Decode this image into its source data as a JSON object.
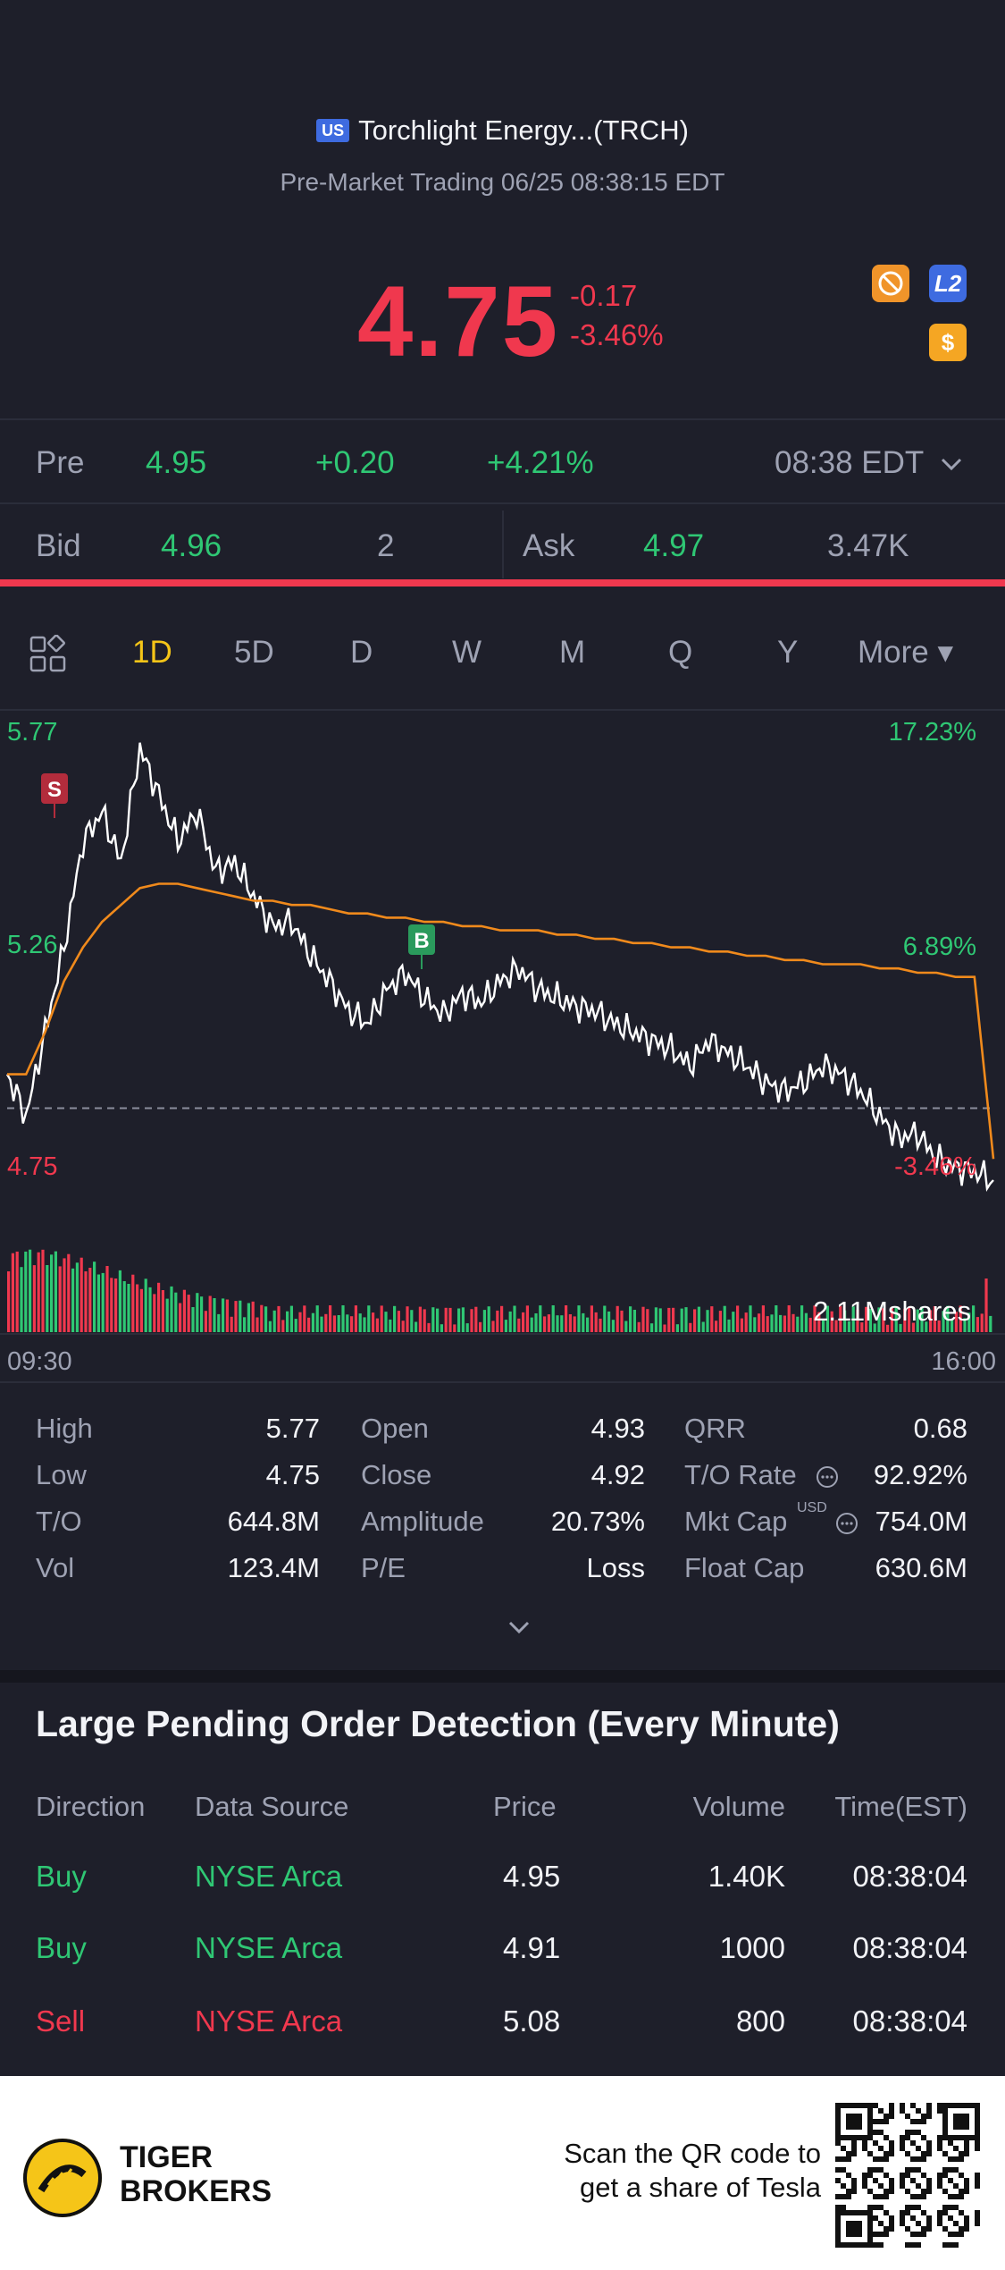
{
  "header": {
    "market_badge": "US",
    "title": "Torchlight Energy...(TRCH)",
    "session": "Pre-Market Trading 06/25 08:38:15 EDT",
    "price": "4.75",
    "change": "-0.17",
    "change_pct": "-3.46%"
  },
  "badges": {
    "l2": "L2",
    "dollar": "$"
  },
  "pre": {
    "label": "Pre",
    "price": "4.95",
    "change": "+0.20",
    "change_pct": "+4.21%",
    "time": "08:38 EDT"
  },
  "bid": {
    "label": "Bid",
    "price": "4.96",
    "size": "2"
  },
  "ask": {
    "label": "Ask",
    "price": "4.97",
    "size": "3.47K"
  },
  "tabs": [
    "1D",
    "5D",
    "D",
    "W",
    "M",
    "Q",
    "Y",
    "More ▾"
  ],
  "active_tab": "1D",
  "chart": {
    "y_top": "5.77",
    "y_mid": "5.26",
    "y_bottom": "4.75",
    "pct_top": "17.23%",
    "pct_mid": "6.89%",
    "pct_bottom": "-3.46%",
    "volume_label": "2.11Mshares",
    "x_start": "09:30",
    "x_end": "16:00",
    "sell_marker": "S",
    "buy_marker": "B"
  },
  "chart_data": {
    "type": "line",
    "x_range": [
      "09:30",
      "16:00"
    ],
    "y_range": [
      4.75,
      5.77
    ],
    "reference_close": 4.92,
    "series": [
      {
        "values": [
          5.0,
          4.9,
          5.1,
          5.3,
          5.55,
          5.62,
          5.5,
          5.77,
          5.66,
          5.55,
          5.62,
          5.48,
          5.5,
          5.42,
          5.35,
          5.36,
          5.28,
          5.22,
          5.15,
          5.12,
          5.2,
          5.24,
          5.18,
          5.14,
          5.19,
          5.17,
          5.22,
          5.25,
          5.2,
          5.18,
          5.16,
          5.15,
          5.12,
          5.1,
          5.08,
          5.06,
          5.02,
          5.08,
          5.05,
          5.02,
          4.98,
          4.96,
          4.98,
          5.02,
          5.0,
          4.96,
          4.9,
          4.85,
          4.86,
          4.8,
          4.78,
          4.77,
          4.75
        ]
      },
      {
        "values": [
          5.0,
          5.0,
          5.1,
          5.22,
          5.3,
          5.36,
          5.4,
          5.44,
          5.45,
          5.45,
          5.44,
          5.43,
          5.42,
          5.41,
          5.41,
          5.4,
          5.4,
          5.39,
          5.38,
          5.38,
          5.37,
          5.37,
          5.36,
          5.36,
          5.35,
          5.35,
          5.34,
          5.34,
          5.34,
          5.33,
          5.33,
          5.32,
          5.32,
          5.31,
          5.31,
          5.3,
          5.3,
          5.29,
          5.29,
          5.28,
          5.28,
          5.27,
          5.27,
          5.26,
          5.26,
          5.26,
          5.25,
          5.25,
          5.24,
          5.24,
          5.23,
          5.23,
          4.8
        ]
      }
    ]
  },
  "stats": {
    "col1": [
      [
        "High",
        "5.77"
      ],
      [
        "Low",
        "4.75"
      ],
      [
        "T/O",
        "644.8M"
      ],
      [
        "Vol",
        "123.4M"
      ]
    ],
    "col2": [
      [
        "Open",
        "4.93"
      ],
      [
        "Close",
        "4.92"
      ],
      [
        "Amplitude",
        "20.73%"
      ],
      [
        "P/E",
        "Loss"
      ]
    ],
    "col3": [
      [
        "QRR",
        "0.68"
      ],
      [
        "T/O Rate",
        "92.92%"
      ],
      [
        "Mkt Cap",
        "754.0M"
      ],
      [
        "Float Cap",
        "630.6M"
      ]
    ],
    "usd_tag": "USD"
  },
  "lpo": {
    "title": "Large Pending Order Detection (Every Minute)",
    "headers": [
      "Direction",
      "Data Source",
      "Price",
      "Volume",
      "Time(EST)"
    ],
    "rows": [
      [
        "Buy",
        "NYSE Arca",
        "4.95",
        "1.40K",
        "08:38:04"
      ],
      [
        "Buy",
        "NYSE Arca",
        "4.91",
        "1000",
        "08:38:04"
      ],
      [
        "Sell",
        "NYSE Arca",
        "5.08",
        "800",
        "08:38:04"
      ]
    ]
  },
  "footer": {
    "brand_line1": "TIGER",
    "brand_line2": "BROKERS",
    "scan_line1": "Scan the QR code to",
    "scan_line2": "get a share of Tesla"
  },
  "colors": {
    "background": "#1e1f2a",
    "up": "#2fc774",
    "down": "#f0384e",
    "accent": "#f5c518",
    "vwap": "#f08a1c"
  }
}
